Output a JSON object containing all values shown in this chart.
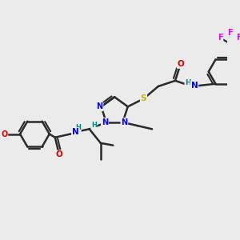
{
  "bg_color": "#ebebeb",
  "bond_color": "#2a2a2a",
  "bond_width": 1.8,
  "atom_colors": {
    "N": "#0000ee",
    "O": "#dd0000",
    "S": "#bbbb00",
    "F": "#ee00ee",
    "H": "#008888",
    "C": "#2a2a2a"
  }
}
